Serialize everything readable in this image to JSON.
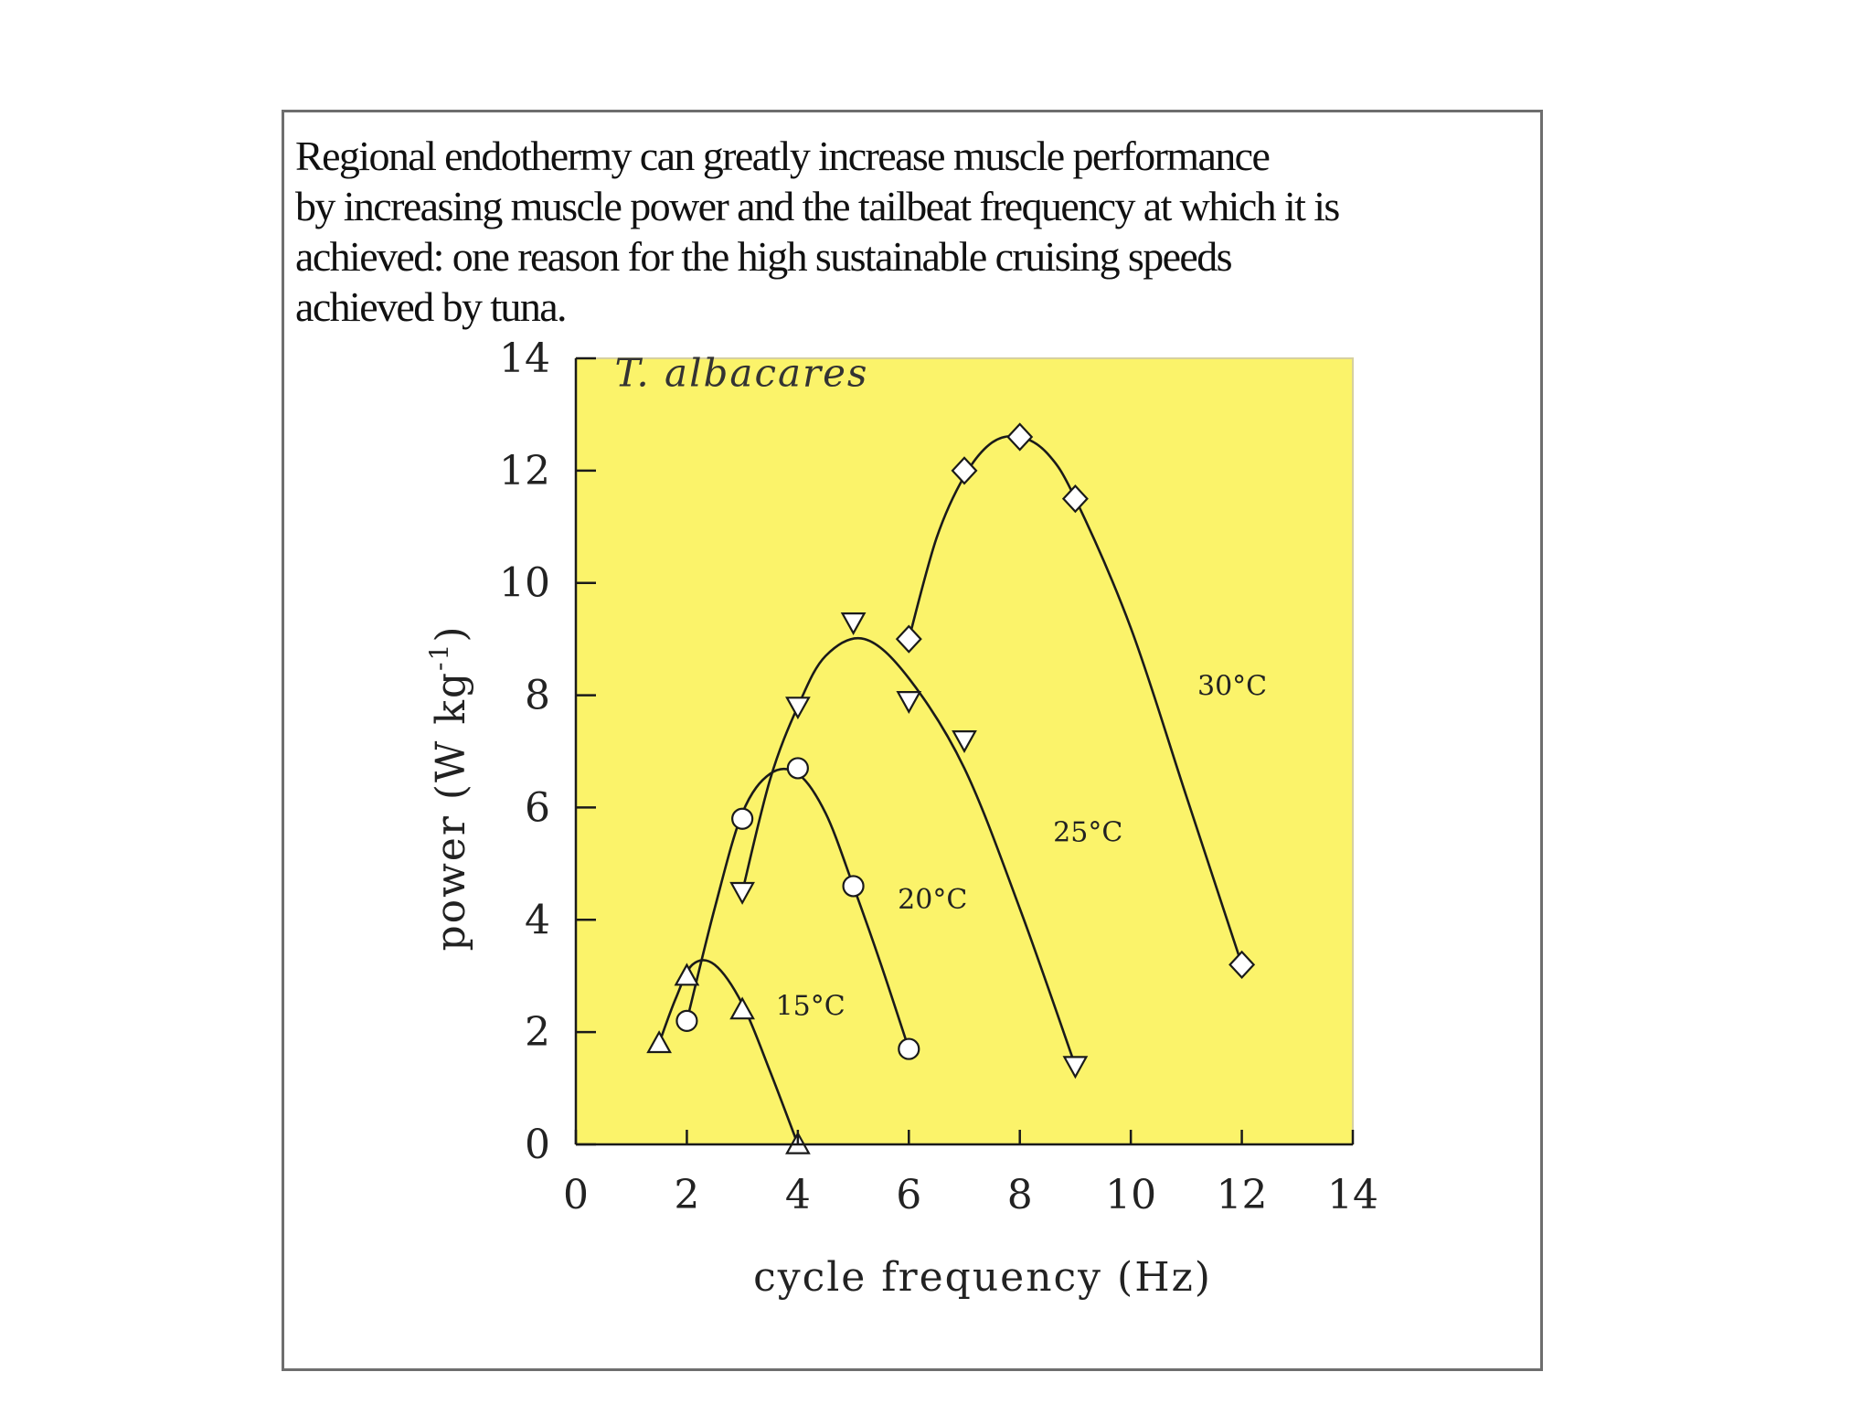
{
  "caption": "Regional endothermy can greatly increase muscle performance\nby increasing muscle power and the tailbeat frequency at which it is\nachieved: one reason for the high sustainable cruising speeds\nachieved by tuna.",
  "chart_data": {
    "type": "scatter",
    "title": "T. albacares",
    "xlabel": "cycle frequency (Hz)",
    "ylabel": "power (W kg",
    "ylabel_sup": "-1",
    "ylabel_close": ")",
    "xlim": [
      0,
      14
    ],
    "ylim": [
      0,
      14
    ],
    "xticks": [
      0,
      2,
      4,
      6,
      8,
      10,
      12,
      14
    ],
    "yticks": [
      0,
      2,
      4,
      6,
      8,
      10,
      12,
      14
    ],
    "colors": {
      "plot_bg": "#fbf36a",
      "line": "#1a1a1a",
      "marker_fill": "#ffffff"
    },
    "series": [
      {
        "name": "15°C",
        "marker": "triangle-up",
        "points": [
          [
            1.5,
            1.8
          ],
          [
            2,
            3.0
          ],
          [
            3,
            2.4
          ],
          [
            4,
            0
          ]
        ],
        "curve": [
          [
            1.5,
            1.8
          ],
          [
            1.8,
            2.6
          ],
          [
            2.1,
            3.2
          ],
          [
            2.5,
            3.2
          ],
          [
            3,
            2.5
          ],
          [
            3.5,
            1.3
          ],
          [
            4,
            0
          ]
        ]
      },
      {
        "name": "20°C",
        "marker": "circle",
        "points": [
          [
            2,
            2.2
          ],
          [
            3,
            5.8
          ],
          [
            4,
            6.7
          ],
          [
            5,
            4.6
          ],
          [
            6,
            1.7
          ]
        ],
        "curve": [
          [
            2,
            2.2
          ],
          [
            2.5,
            4.2
          ],
          [
            3,
            5.9
          ],
          [
            3.5,
            6.6
          ],
          [
            4,
            6.6
          ],
          [
            4.5,
            5.9
          ],
          [
            5,
            4.6
          ],
          [
            5.5,
            3.2
          ],
          [
            6,
            1.7
          ]
        ]
      },
      {
        "name": "25°C",
        "marker": "triangle-down",
        "points": [
          [
            3,
            4.5
          ],
          [
            4,
            7.8
          ],
          [
            5,
            9.3
          ],
          [
            6,
            7.9
          ],
          [
            7,
            7.2
          ],
          [
            9,
            1.4
          ]
        ],
        "curve": [
          [
            3,
            4.5
          ],
          [
            3.5,
            6.5
          ],
          [
            4,
            7.8
          ],
          [
            4.5,
            8.7
          ],
          [
            5.2,
            9.0
          ],
          [
            6,
            8.3
          ],
          [
            7,
            6.7
          ],
          [
            8,
            4.2
          ],
          [
            9,
            1.4
          ]
        ]
      },
      {
        "name": "30°C",
        "marker": "diamond",
        "points": [
          [
            6,
            9.0
          ],
          [
            7,
            12.0
          ],
          [
            8,
            12.6
          ],
          [
            9,
            11.5
          ],
          [
            12,
            3.2
          ]
        ],
        "curve": [
          [
            6,
            9.0
          ],
          [
            6.5,
            10.8
          ],
          [
            7,
            11.9
          ],
          [
            7.5,
            12.5
          ],
          [
            8,
            12.6
          ],
          [
            8.5,
            12.3
          ],
          [
            9,
            11.5
          ],
          [
            10,
            9.2
          ],
          [
            11,
            6.2
          ],
          [
            12,
            3.2
          ]
        ]
      }
    ],
    "series_label_positions": [
      [
        3.6,
        2.3
      ],
      [
        5.8,
        4.2
      ],
      [
        8.6,
        5.4
      ],
      [
        11.2,
        8.0
      ]
    ]
  }
}
